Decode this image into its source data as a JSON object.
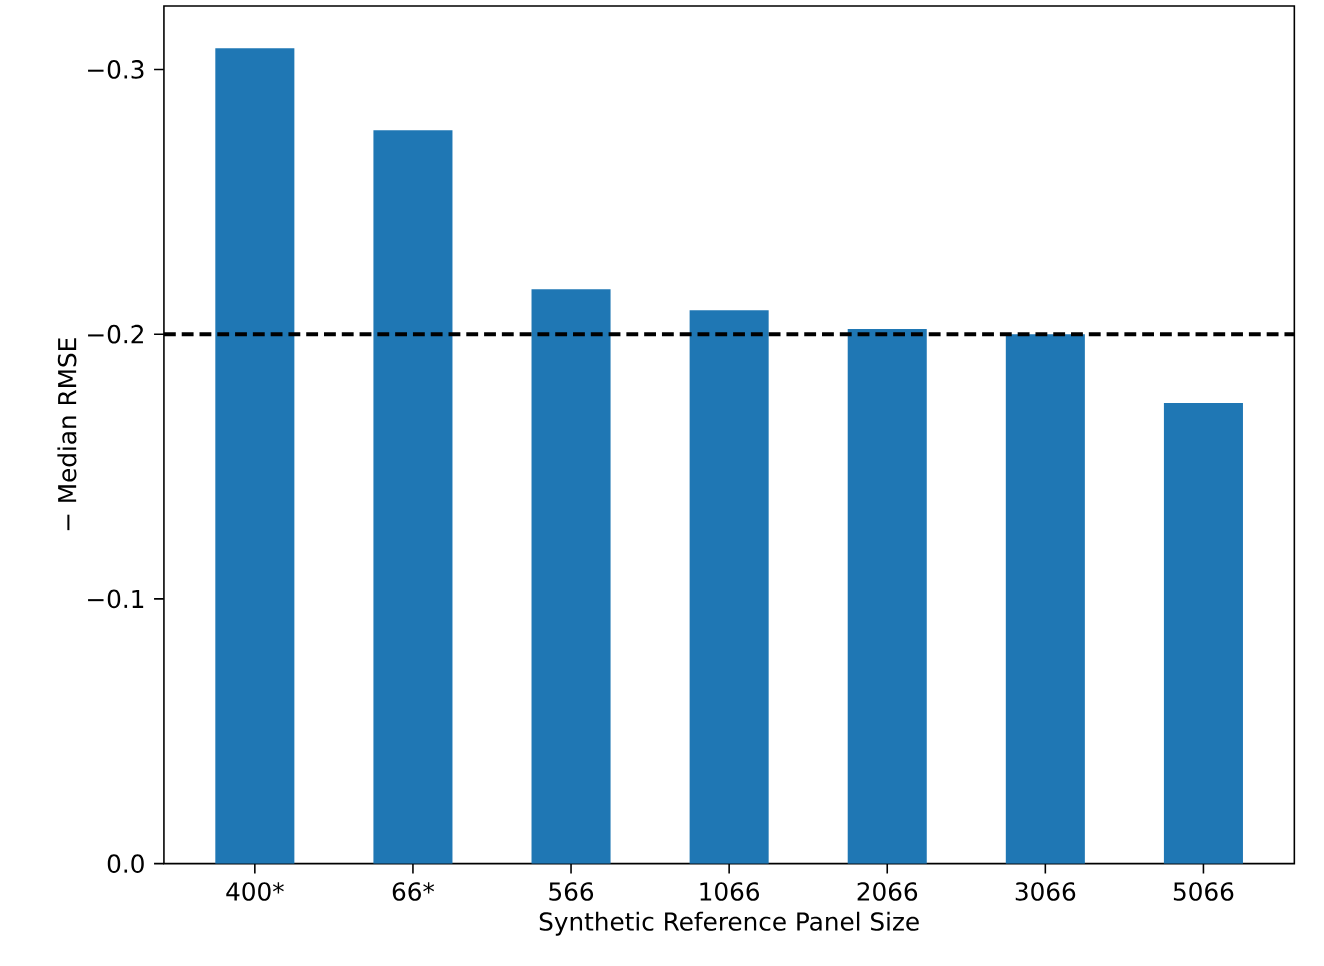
{
  "chart_data": {
    "type": "bar",
    "xlabel": "Synthetic Reference Panel Size",
    "ylabel": "− Median RMSE",
    "categories": [
      "400*",
      "66*",
      "566",
      "1066",
      "2066",
      "3066",
      "5066"
    ],
    "values": [
      -0.308,
      -0.277,
      -0.217,
      -0.209,
      -0.202,
      -0.2,
      -0.174
    ],
    "color": "#1f77b4",
    "ylim": [
      0,
      -0.324
    ],
    "yticks": [
      {
        "value": 0.0,
        "label": "0.0"
      },
      {
        "value": -0.1,
        "label": "−0.1"
      },
      {
        "value": -0.2,
        "label": "−0.2"
      },
      {
        "value": -0.3,
        "label": "−0.3"
      }
    ],
    "ref_lines": [
      {
        "axis": "y",
        "value": -0.2,
        "color": "#000000",
        "line_style": "dashed"
      }
    ]
  }
}
